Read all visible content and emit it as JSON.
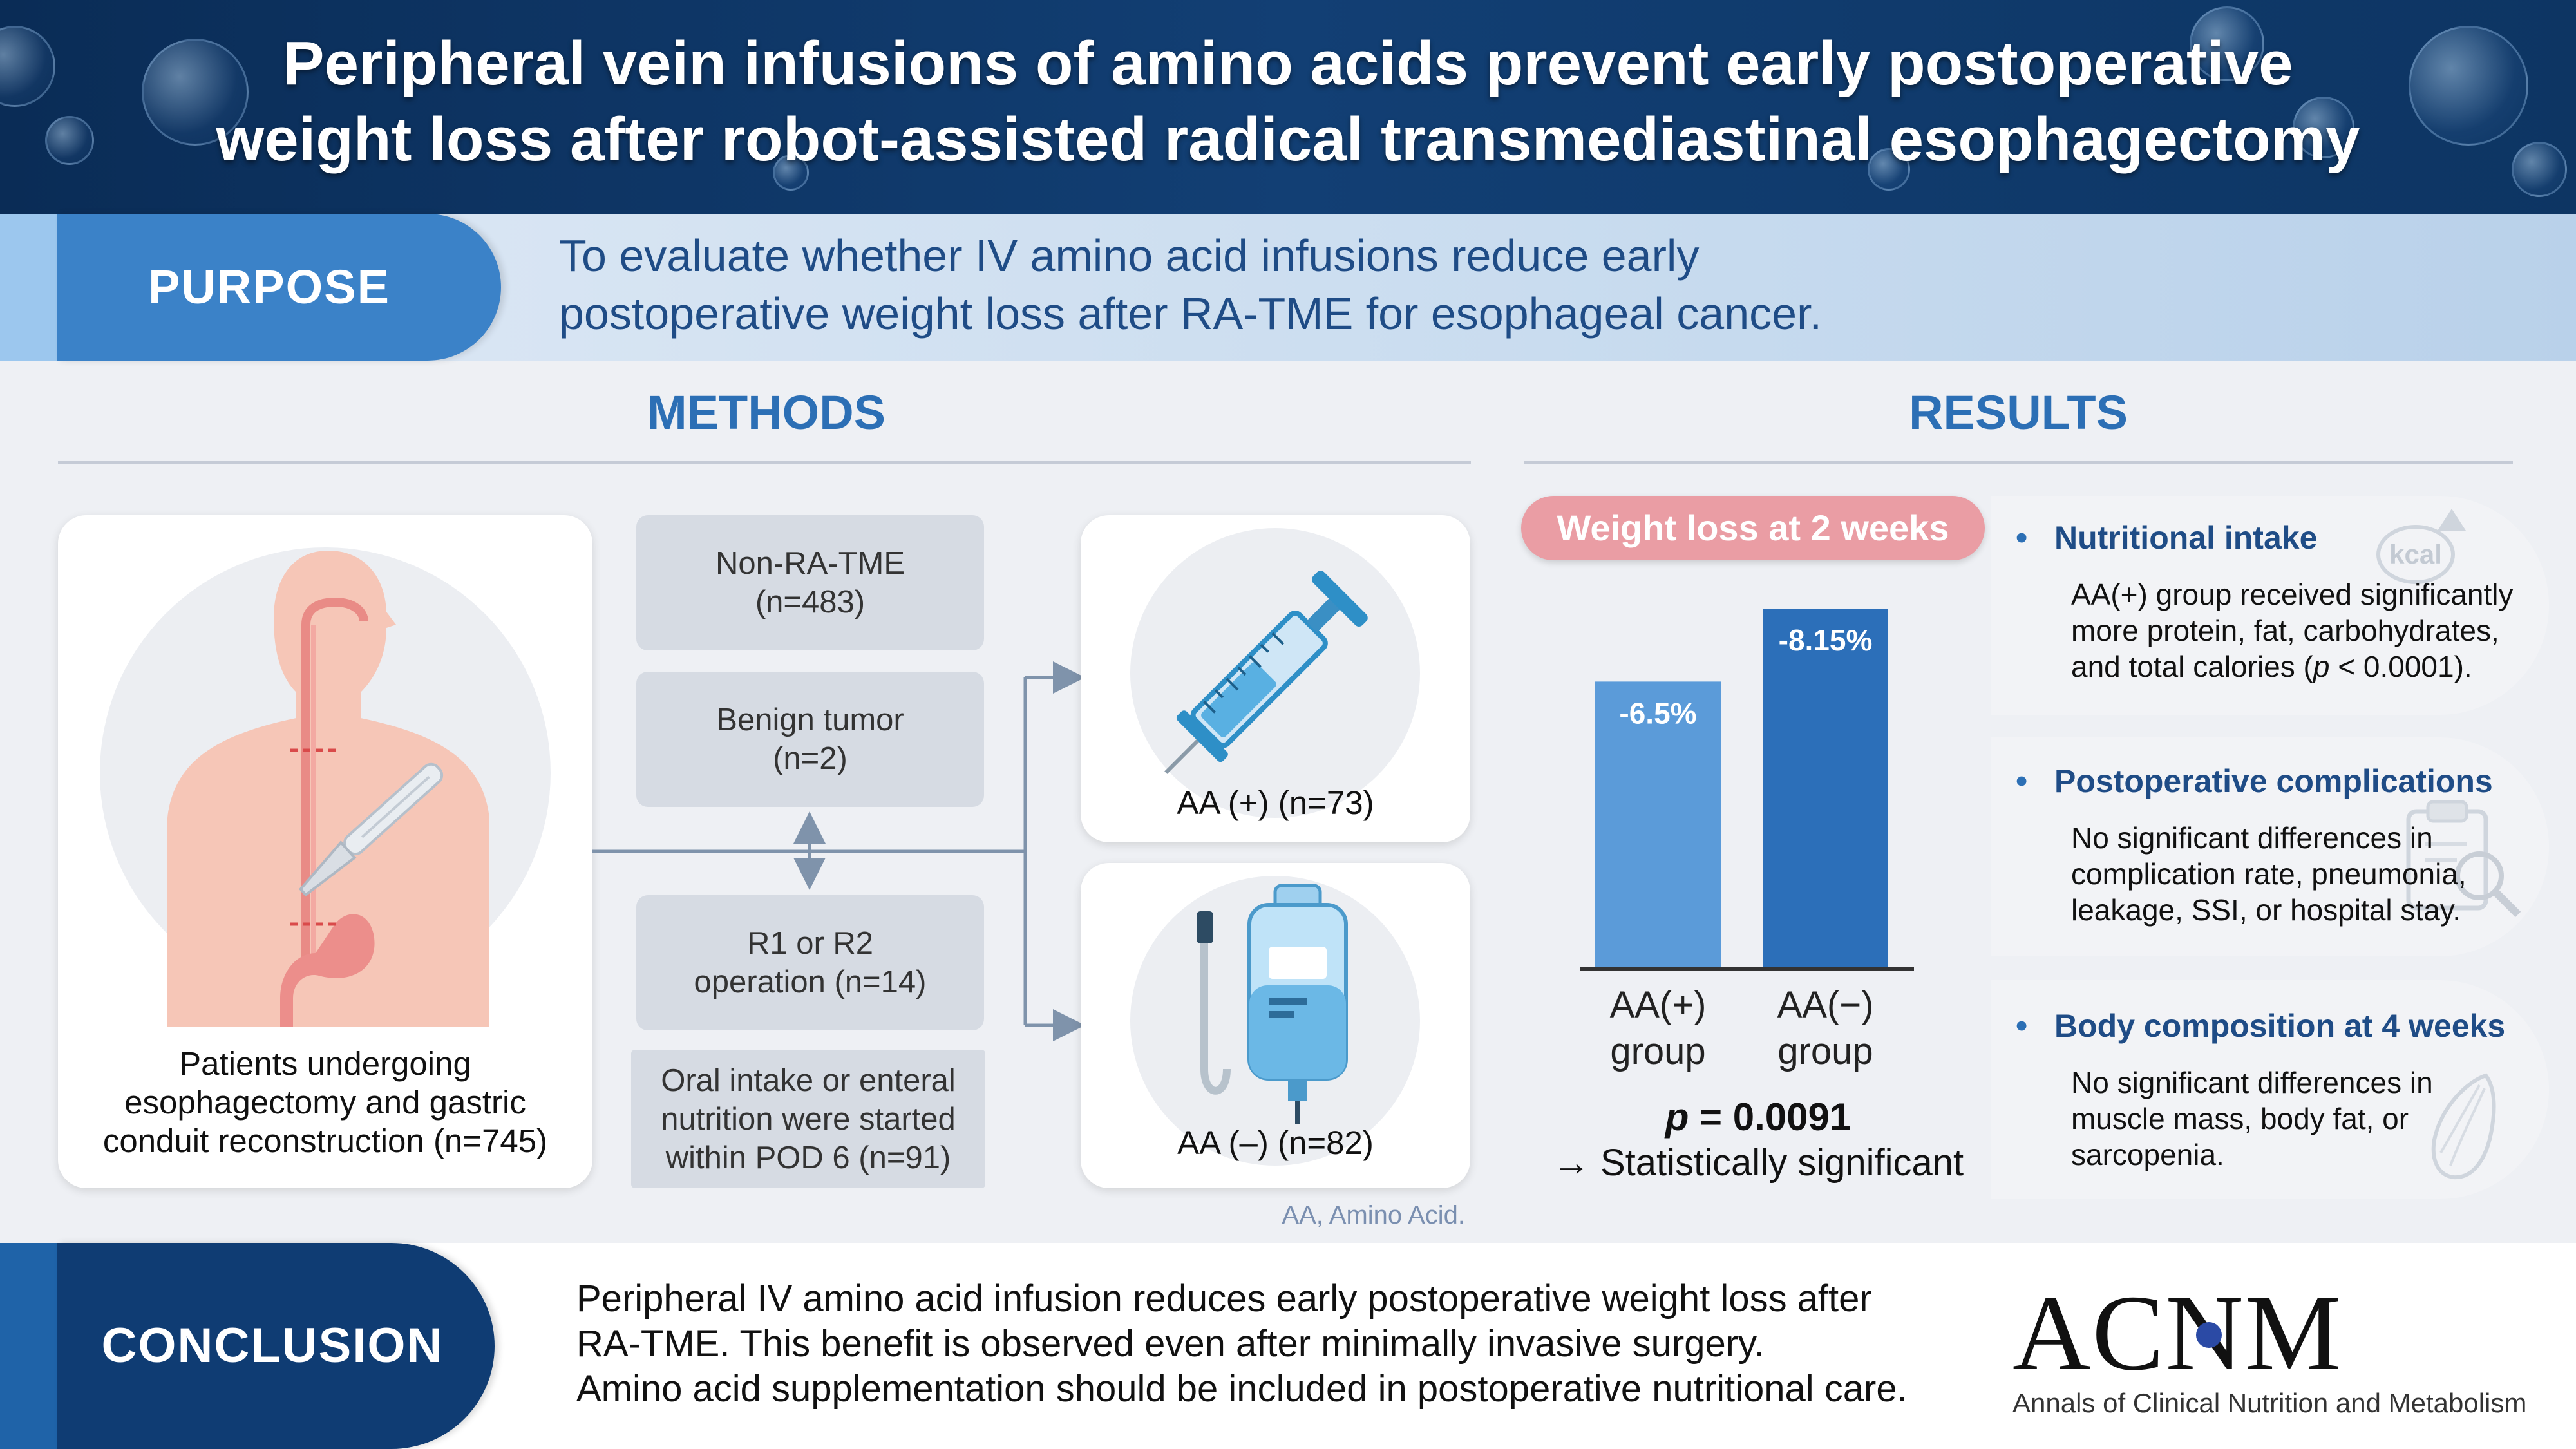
{
  "header": {
    "title_line1": "Peripheral vein infusions of amino acids prevent early postoperative",
    "title_line2": "weight loss after robot-assisted radical transmediastinal esophagectomy"
  },
  "purpose": {
    "label": "PURPOSE",
    "line1": "To evaluate whether IV amino acid infusions reduce early",
    "line2": "postoperative weight loss after RA-TME for esophageal cancer."
  },
  "methods": {
    "title": "METHODS",
    "patients": {
      "line1": "Patients undergoing",
      "line2": "esophagectomy and gastric",
      "line3": "conduit reconstruction (n=745)"
    },
    "exclusions": [
      {
        "line1": "Non-RA-TME",
        "line2": "(n=483)"
      },
      {
        "line1": "Benign tumor",
        "line2": "(n=2)"
      },
      {
        "line1": "R1 or R2",
        "line2": "operation (n=14)"
      }
    ],
    "oral": {
      "line1": "Oral intake or enteral",
      "line2": "nutrition were started",
      "line3": "within POD 6 (n=91)"
    },
    "groups": [
      {
        "label": "AA (+) (n=73)",
        "icon": "syringe-icon"
      },
      {
        "label": "AA (–) (n=82)",
        "icon": "iv-bag-icon"
      }
    ],
    "footnote": "AA, Amino Acid."
  },
  "results": {
    "title": "RESULTS",
    "chart_badge": "Weight loss at 2 weeks",
    "p_value_label": "p",
    "p_value_rest": " = 0.0091",
    "significance": "→ Statistically significant",
    "items": [
      {
        "heading": "Nutritional intake",
        "line1": "AA(+) group received significantly",
        "line2": "more protein, fat, carbohydrates,",
        "line3_pre": "and total calories (",
        "line3_p": "p",
        "line3_post": " < 0.0001).",
        "icon": "kcal-icon",
        "icon_text": "kcal"
      },
      {
        "heading": "Postoperative complications",
        "line1": "No significant differences in",
        "line2": "complication rate, pneumonia,",
        "line3": "leakage, SSI, or hospital stay.",
        "icon": "clipboard-search-icon"
      },
      {
        "heading": "Body composition at 4 weeks",
        "line1": "No significant differences in",
        "line2": "muscle mass, body fat, or",
        "line3": "sarcopenia.",
        "icon": "muscle-icon"
      }
    ]
  },
  "chart_data": {
    "type": "bar",
    "categories": [
      "AA(+) group",
      "AA(−) group"
    ],
    "category_lines": [
      [
        "AA(+)",
        "group"
      ],
      [
        "AA(−)",
        "group"
      ]
    ],
    "values": [
      -6.5,
      -8.15
    ],
    "labels": [
      "-6.5%",
      "-8.15%"
    ],
    "colors": [
      "#5b9bd9",
      "#2c6fb9"
    ],
    "title": "Weight loss at 2 weeks"
  },
  "conclusion": {
    "label": "CONCLUSION",
    "line1": "Peripheral IV amino acid infusion reduces early postoperative weight loss after",
    "line2": "RA-TME. This benefit is observed even after minimally invasive surgery.",
    "line3": "Amino acid supplementation should be included in postoperative nutritional care."
  },
  "journal": {
    "logo": "ACNM",
    "name": "Annals of Clinical Nutrition and Metabolism"
  }
}
